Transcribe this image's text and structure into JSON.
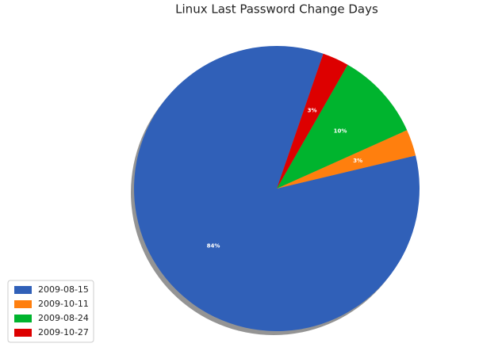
{
  "chart_data": {
    "type": "pie",
    "title": "Linux Last Password Change Days",
    "categories": [
      "2009-08-15",
      "2009-10-11",
      "2009-08-24",
      "2009-10-27"
    ],
    "values": [
      84,
      3,
      10,
      3
    ],
    "value_labels": [
      "84%",
      "3%",
      "10%",
      "3%"
    ],
    "colors": [
      "#3060b8",
      "#ff7f0e",
      "#00b42e",
      "#dd0000"
    ],
    "shadow": true,
    "legend": "lower left"
  }
}
